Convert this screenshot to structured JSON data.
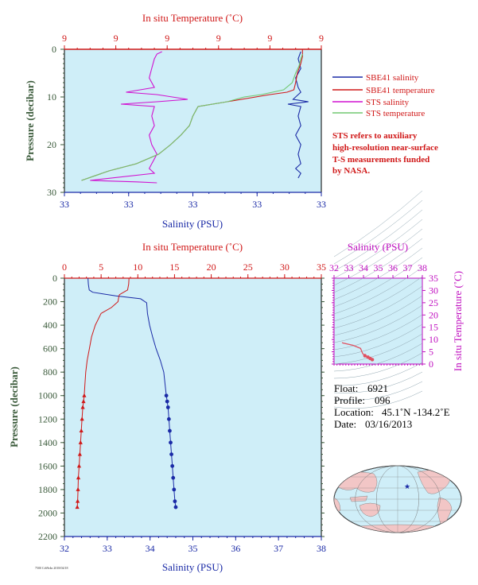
{
  "colors": {
    "plot_bg": "#cfeef8",
    "salinity": "#1a2aa6",
    "temperature": "#d01818",
    "sts_salinity": "#d010d0",
    "sts_temperature": "#70c870",
    "ts_axis": "#c010c0",
    "pressure_axis": "#3a5a3a"
  },
  "chart_data": [
    {
      "type": "line",
      "panel": "top-near-surface",
      "title_top": "In situ Temperature (˚C)",
      "xlabel": "Salinity (PSU)",
      "ylabel": "Pressure (decibar)",
      "top_tick_labels": [
        "9",
        "9",
        "9",
        "9",
        "9",
        "9"
      ],
      "bottom_tick_labels": [
        "33",
        "33",
        "33",
        "33",
        "33"
      ],
      "y_tick_labels": [
        "0",
        "10",
        "20",
        "30"
      ],
      "x_salinity_range": [
        32.6,
        33.6
      ],
      "x_temperature_range": [
        8.0,
        9.5
      ],
      "ylim": [
        0,
        30
      ],
      "y_reversed": true,
      "legend_position": "right",
      "legend": [
        {
          "label": "SBE41 salinity",
          "color": "#1a2aa6"
        },
        {
          "label": "SBE41 temperature",
          "color": "#d01818"
        },
        {
          "label": "STS salinity",
          "color": "#d010d0"
        },
        {
          "label": "STS temperature",
          "color": "#70c870"
        }
      ],
      "note": [
        "STS refers to auxiliary",
        "high-resolution near-surface",
        "T-S measurements funded",
        "by NASA."
      ],
      "series": [
        {
          "name": "SBE41 salinity",
          "color": "#1a2aa6",
          "x": [
            33.52,
            33.51,
            33.52,
            33.5,
            33.51,
            33.52,
            33.5,
            33.49,
            33.55,
            33.47,
            33.52,
            33.51,
            33.52,
            33.5,
            33.52,
            33.51,
            33.52,
            33.5,
            33.52,
            33.51
          ],
          "y": [
            0.5,
            2,
            4,
            6,
            8,
            9,
            10,
            10.5,
            11,
            11.5,
            12,
            14,
            16,
            18,
            20,
            22,
            24,
            25,
            26,
            27
          ]
        },
        {
          "name": "SBE41 temperature",
          "color": "#d01818",
          "x": [
            9.39,
            9.39,
            9.38,
            9.36,
            9.35,
            9.34,
            9.3,
            9.2,
            8.95,
            8.78,
            8.75,
            8.73,
            8.68,
            8.62,
            8.55,
            8.42,
            8.26,
            8.1
          ],
          "y": [
            0,
            1.5,
            3,
            5,
            7,
            8.5,
            9,
            9.5,
            11,
            12,
            14,
            16,
            18,
            20,
            22,
            24,
            25.5,
            27.5
          ]
        },
        {
          "name": "STS salinity",
          "color": "#d010d0",
          "x": [
            32.98,
            32.96,
            32.95,
            32.94,
            32.93,
            32.95,
            32.84,
            32.96,
            33.08,
            32.96,
            32.82,
            32.95,
            32.94,
            32.95,
            32.93,
            32.94,
            32.96,
            32.94,
            32.93,
            32.95,
            32.7,
            32.88,
            32.96
          ],
          "y": [
            0.5,
            1,
            2,
            4,
            6,
            8,
            9,
            9.5,
            10.5,
            11,
            11.5,
            12,
            14,
            16,
            18,
            20,
            22,
            24,
            25,
            26,
            27.5,
            27.8,
            28
          ]
        },
        {
          "name": "STS temperature",
          "color": "#70c870",
          "x": [
            9.39,
            9.38,
            9.37,
            9.35,
            9.33,
            9.28,
            9.15,
            9.05,
            8.95,
            8.78,
            8.75,
            8.73,
            8.68,
            8.62,
            8.55,
            8.42,
            8.26,
            8.1
          ],
          "y": [
            1,
            2,
            3.5,
            5,
            7,
            8.5,
            9.5,
            10,
            11,
            12,
            14,
            16,
            18,
            20,
            22,
            24,
            25.5,
            27.5
          ]
        }
      ]
    },
    {
      "type": "line",
      "panel": "bottom-full-profile",
      "title_top": "In situ Temperature (˚C)",
      "xlabel": "Salinity (PSU)",
      "ylabel": "Pressure (decibar)",
      "top_tick_labels": [
        "0",
        "5",
        "10",
        "15",
        "20",
        "25",
        "30",
        "35"
      ],
      "bottom_tick_labels": [
        "32",
        "33",
        "34",
        "35",
        "36",
        "37",
        "38"
      ],
      "y_tick_labels": [
        "0",
        "200",
        "400",
        "600",
        "800",
        "1000",
        "1200",
        "1400",
        "1600",
        "1800",
        "2000",
        "2200"
      ],
      "x_salinity_range": [
        32,
        38
      ],
      "x_temperature_range": [
        0,
        35
      ],
      "ylim": [
        0,
        2200
      ],
      "y_reversed": true,
      "series": [
        {
          "name": "Salinity",
          "color": "#1a2aa6",
          "marker": "circle",
          "x": [
            32.55,
            32.56,
            32.58,
            32.66,
            33.2,
            33.78,
            33.92,
            33.94,
            33.99,
            34.06,
            34.14,
            34.24,
            34.32,
            34.35,
            34.38,
            34.4,
            34.42,
            34.44,
            34.46,
            34.48,
            34.5,
            34.52,
            34.54,
            34.56,
            34.58,
            34.6
          ],
          "y": [
            0,
            50,
            100,
            120,
            150,
            175,
            210,
            300,
            400,
            500,
            600,
            700,
            800,
            900,
            1000,
            1050,
            1100,
            1200,
            1300,
            1400,
            1500,
            1600,
            1700,
            1800,
            1900,
            1950
          ]
        },
        {
          "name": "Temperature",
          "color": "#d01818",
          "marker": "triangle",
          "x": [
            8.8,
            8.75,
            8.6,
            7.5,
            7.4,
            7.3,
            6.4,
            5.0,
            4.2,
            3.7,
            3.4,
            3.1,
            2.9,
            2.8,
            2.7,
            2.6,
            2.5,
            2.4,
            2.3,
            2.2,
            2.1,
            2.0,
            1.9,
            1.85,
            1.8,
            1.75
          ],
          "y": [
            0,
            50,
            100,
            140,
            160,
            200,
            250,
            300,
            400,
            500,
            600,
            700,
            800,
            900,
            1000,
            1050,
            1100,
            1200,
            1300,
            1400,
            1500,
            1600,
            1700,
            1800,
            1900,
            1950
          ]
        }
      ],
      "marker_start_y": 1000
    },
    {
      "type": "line",
      "panel": "ts-diagram",
      "title_top": "Salinity (PSU)",
      "ylabel": "In situ Temperature (˚C)",
      "top_tick_labels": [
        "32",
        "33",
        "34",
        "35",
        "36",
        "37",
        "38"
      ],
      "y_tick_labels": [
        "0",
        "5",
        "10",
        "15",
        "20",
        "25",
        "30",
        "35"
      ],
      "x_salinity_range": [
        32,
        38
      ],
      "ylim": [
        0,
        35
      ],
      "series": [
        {
          "name": "T-S",
          "color": "#e05060",
          "x": [
            32.55,
            32.6,
            33.3,
            33.8,
            33.95,
            34.1,
            34.3,
            34.45,
            34.6
          ],
          "y": [
            8.8,
            8.6,
            7.6,
            6.4,
            4.2,
            3.4,
            2.8,
            2.3,
            1.8
          ]
        }
      ]
    }
  ],
  "info": {
    "float_label": "Float:",
    "float_value": "6921",
    "profile_label": "Profile:",
    "profile_value": "096",
    "location_label": "Location:",
    "location_value": "45.1˚N -134.2˚E",
    "date_label": "Date:",
    "date_value": "03/16/2013"
  },
  "map": {
    "marker_color": "#1a2aa6",
    "marker_lat": 45.1,
    "marker_lon": -134.2
  },
  "footer_stamp": "7500 Cr69r4n 2018/04/18"
}
